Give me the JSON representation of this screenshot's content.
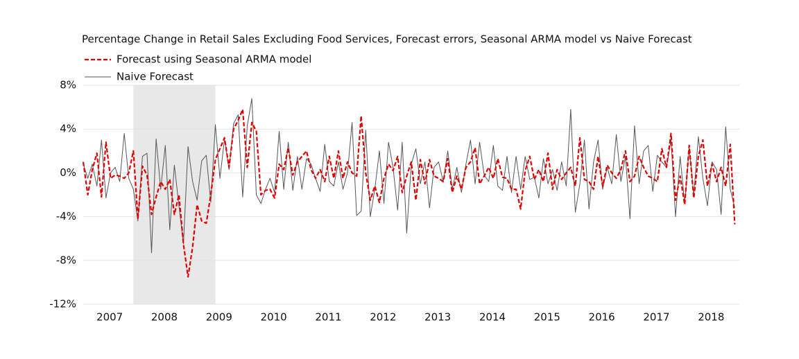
{
  "chart_data": {
    "type": "line",
    "title": "Percentage Change in Retail Sales Excluding Food Services, Forecast errors, Seasonal ARMA model vs Naive Forecast",
    "categories": [
      null,
      null,
      null,
      null,
      null,
      null,
      "2007",
      null,
      null,
      null,
      null,
      null,
      null,
      null,
      null,
      null,
      null,
      null,
      "2008",
      null,
      null,
      null,
      null,
      null,
      null,
      null,
      null,
      null,
      null,
      null,
      "2009",
      null,
      null,
      null,
      null,
      null,
      null,
      null,
      null,
      null,
      null,
      null,
      "2010",
      null,
      null,
      null,
      null,
      null,
      null,
      null,
      null,
      null,
      null,
      null,
      "2011",
      null,
      null,
      null,
      null,
      null,
      null,
      null,
      null,
      null,
      null,
      null,
      "2012",
      null,
      null,
      null,
      null,
      null,
      null,
      null,
      null,
      null,
      null,
      null,
      "2013",
      null,
      null,
      null,
      null,
      null,
      null,
      null,
      null,
      null,
      null,
      null,
      "2014",
      null,
      null,
      null,
      null,
      null,
      null,
      null,
      null,
      null,
      null,
      null,
      "2015",
      null,
      null,
      null,
      null,
      null,
      null,
      null,
      null,
      null,
      null,
      null,
      "2016",
      null,
      null,
      null,
      null,
      null,
      null,
      null,
      null,
      null,
      null,
      null,
      "2017",
      null,
      null,
      null,
      null,
      null,
      null,
      null,
      null,
      null,
      null,
      null,
      "2018",
      null,
      null,
      null,
      null,
      null
    ],
    "series": [
      {
        "name": "Forecast using Seasonal ARMA model",
        "color": "#e00000",
        "dashed": true,
        "values": [
          1.0,
          -2.0,
          0.3,
          1.8,
          -2.2,
          2.8,
          -0.5,
          -0.2,
          -0.3,
          -0.5,
          0.0,
          2.0,
          -4.2,
          0.6,
          -0.2,
          -3.8,
          -2.2,
          -0.8,
          -1.5,
          -0.6,
          -3.8,
          -2.0,
          -6.5,
          -9.5,
          -6.8,
          -2.9,
          -4.4,
          -4.6,
          -2.0,
          1.2,
          2.2,
          3.2,
          0.5,
          4.0,
          4.8,
          5.8,
          0.5,
          4.6,
          3.8,
          -2.0,
          -1.6,
          -1.5,
          -2.3,
          0.8,
          0.3,
          2.3,
          -0.2,
          1.0,
          1.5,
          2.0,
          0.3,
          -0.5,
          0.3,
          -0.8,
          1.5,
          -0.5,
          2.0,
          -0.5,
          1.0,
          0.0,
          -0.3,
          5.2,
          0.0,
          -2.5,
          -1.2,
          -2.7,
          -0.5,
          0.8,
          0.2,
          1.5,
          -1.8,
          -0.3,
          1.0,
          -2.5,
          1.2,
          -1.0,
          1.2,
          -0.3,
          -0.5,
          -0.8,
          1.3,
          -1.8,
          -0.3,
          -1.5,
          0.5,
          1.0,
          2.3,
          -1.0,
          -0.3,
          0.5,
          -0.5,
          1.3,
          -0.4,
          -0.5,
          -1.5,
          -1.5,
          -3.3,
          0.2,
          1.5,
          -0.6,
          0.3,
          -0.8,
          1.8,
          -1.5,
          0.3,
          -0.6,
          0.0,
          0.5,
          -1.2,
          3.2,
          -0.6,
          -0.8,
          -1.5,
          1.5,
          -1.2,
          0.7,
          0.0,
          -0.5,
          0.3,
          2.0,
          -0.8,
          -0.3,
          1.5,
          0.5,
          -0.3,
          -0.5,
          -0.8,
          2.2,
          0.5,
          3.6,
          -2.5,
          -0.3,
          -2.9,
          2.5,
          -2.3,
          1.5,
          3.0,
          -1.2,
          0.8,
          -0.8,
          0.5,
          -1.2,
          2.6,
          -4.7
        ]
      },
      {
        "name": "Naive Forecast",
        "color": "#555555",
        "dashed": false,
        "values": [
          0.8,
          -0.5,
          0.8,
          -1.2,
          3.0,
          -2.3,
          0.0,
          0.5,
          -0.8,
          3.6,
          -0.5,
          -1.5,
          -4.4,
          1.5,
          1.8,
          -7.3,
          3.1,
          -1.5,
          2.5,
          -5.2,
          0.7,
          -3.0,
          -6.5,
          2.4,
          -0.8,
          -2.5,
          1.1,
          1.6,
          -2.7,
          4.4,
          -0.5,
          3.1,
          0.3,
          4.5,
          5.3,
          -2.2,
          4.3,
          6.8,
          -2.0,
          -2.8,
          -1.5,
          -0.5,
          -1.8,
          3.8,
          -1.5,
          2.8,
          -1.6,
          1.5,
          -1.5,
          1.3,
          0.8,
          -0.5,
          -1.7,
          2.6,
          -0.8,
          -1.2,
          1.0,
          -1.5,
          0.0,
          4.6,
          -3.9,
          -3.5,
          3.9,
          -4.0,
          -1.5,
          2.0,
          -2.8,
          2.8,
          0.5,
          -3.4,
          2.8,
          -5.5,
          0.8,
          2.2,
          -1.0,
          1.0,
          -3.2,
          0.5,
          1.0,
          -0.8,
          2.0,
          -1.5,
          0.5,
          -1.8,
          0.8,
          3.0,
          -1.0,
          2.8,
          -0.2,
          -0.8,
          2.5,
          -1.2,
          -1.6,
          1.5,
          -1.8,
          1.5,
          -1.5,
          1.5,
          -0.6,
          -0.4,
          -2.3,
          1.3,
          -1.0,
          0.3,
          -1.6,
          1.0,
          -1.2,
          5.8,
          -3.6,
          -1.0,
          3.0,
          -3.3,
          1.0,
          3.0,
          -1.5,
          0.5,
          -1.0,
          3.5,
          -0.8,
          1.5,
          -4.2,
          4.3,
          -1.0,
          2.0,
          2.5,
          -1.7,
          1.6,
          1.0,
          0.5,
          3.0,
          -4.0,
          1.5,
          -2.8,
          2.3,
          -2.0,
          3.3,
          -0.5,
          -3.0,
          1.0,
          0.3,
          -3.8,
          4.2,
          -1.5,
          -3.2
        ]
      }
    ],
    "shaded_range": [
      11,
      29
    ],
    "ylim": [
      -12,
      8
    ],
    "yticks": [
      {
        "value": -12,
        "label": "-12%"
      },
      {
        "value": -8,
        "label": "-8%"
      },
      {
        "value": -4,
        "label": "-4%"
      },
      {
        "value": 0,
        "label": "0%"
      },
      {
        "value": 4,
        "label": "4%"
      },
      {
        "value": 8,
        "label": "8%"
      }
    ],
    "grid": true,
    "legend": "top-left"
  }
}
